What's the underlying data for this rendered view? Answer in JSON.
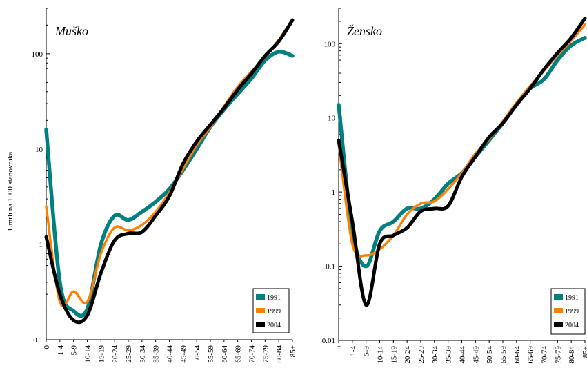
{
  "chart_data": [
    {
      "type": "line",
      "title": "Muško",
      "ylabel": "Umrli na 1000 stanovnika",
      "yscale": "log",
      "ylim": [
        0.1,
        300
      ],
      "ytick_labels": [
        "0.1",
        "1",
        "10",
        "100"
      ],
      "categories": [
        "0",
        "1-4",
        "5-9",
        "10-14",
        "15-19",
        "20-24",
        "25-29",
        "30-34",
        "35-39",
        "40-44",
        "45-49",
        "50-54",
        "55-59",
        "60-64",
        "65-69",
        "70-74",
        "75-79",
        "80-84",
        "85+"
      ],
      "series": [
        {
          "name": "1991",
          "color": "#008080",
          "values": [
            16,
            0.4,
            0.2,
            0.21,
            1.0,
            2.0,
            1.8,
            2.2,
            2.8,
            3.8,
            6.0,
            10,
            17,
            26,
            38,
            55,
            85,
            105,
            95
          ]
        },
        {
          "name": "1999",
          "color": "#ff8000",
          "values": [
            2.5,
            0.25,
            0.32,
            0.25,
            0.8,
            1.5,
            1.4,
            1.6,
            2.2,
            3.5,
            6.2,
            11,
            17,
            28,
            45,
            65,
            92,
            140,
            230
          ]
        },
        {
          "name": "2004",
          "color": "#000000",
          "values": [
            1.2,
            0.3,
            0.16,
            0.18,
            0.5,
            1.1,
            1.3,
            1.35,
            2.0,
            3.2,
            7.0,
            12,
            18,
            27,
            42,
            62,
            95,
            135,
            225
          ]
        }
      ],
      "legend_position": "bottom-right"
    },
    {
      "type": "line",
      "title": "Žensko",
      "ylabel": "",
      "yscale": "log",
      "ylim": [
        0.01,
        300
      ],
      "ytick_labels": [
        "0.01",
        "0.1",
        "1",
        "10",
        "100"
      ],
      "categories": [
        "0",
        "1-4",
        "5-9",
        "10-14",
        "15-19",
        "20-24",
        "25-29",
        "30-34",
        "35-39",
        "40-44",
        "45-49",
        "50-54",
        "55-59",
        "60-64",
        "65-69",
        "70-74",
        "75-79",
        "80-84",
        "85+"
      ],
      "series": [
        {
          "name": "1991",
          "color": "#008080",
          "values": [
            15,
            0.3,
            0.1,
            0.3,
            0.4,
            0.6,
            0.6,
            0.8,
            1.3,
            1.8,
            3.0,
            5.0,
            8.5,
            15,
            25,
            33,
            60,
            95,
            120
          ]
        },
        {
          "name": "1999",
          "color": "#ff8000",
          "values": [
            4.5,
            0.2,
            0.14,
            0.17,
            0.26,
            0.5,
            0.7,
            0.75,
            1.1,
            1.8,
            3.3,
            5.2,
            9.0,
            16,
            27,
            43,
            70,
            110,
            180
          ]
        },
        {
          "name": "2004",
          "color": "#000000",
          "values": [
            5.0,
            0.4,
            0.03,
            0.2,
            0.26,
            0.33,
            0.55,
            0.6,
            0.65,
            1.6,
            3.0,
            5.5,
            8.5,
            15,
            25,
            45,
            75,
            120,
            220
          ]
        }
      ],
      "legend_position": "bottom-right"
    }
  ]
}
